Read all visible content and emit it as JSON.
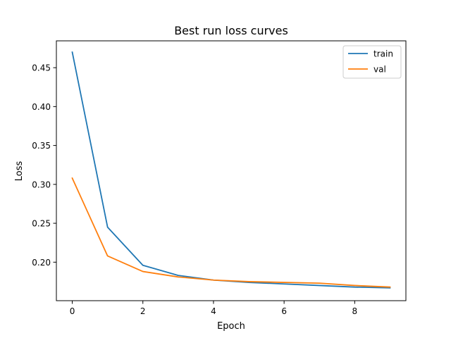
{
  "chart_data": {
    "type": "line",
    "title": "Best run loss curves",
    "xlabel": "Epoch",
    "ylabel": "Loss",
    "x": [
      0,
      1,
      2,
      3,
      4,
      5,
      6,
      7,
      8,
      9
    ],
    "xticks": [
      0,
      2,
      4,
      6,
      8
    ],
    "xtick_labels": [
      "0",
      "2",
      "4",
      "6",
      "8"
    ],
    "yticks": [
      0.2,
      0.25,
      0.3,
      0.35,
      0.4,
      0.45
    ],
    "ytick_labels": [
      "0.20",
      "0.25",
      "0.30",
      "0.35",
      "0.40",
      "0.45"
    ],
    "xlim": [
      -0.45,
      9.45
    ],
    "ylim": [
      0.1505,
      0.4845
    ],
    "grid": false,
    "legend_position": "upper right",
    "series": [
      {
        "name": "train",
        "color": "#1f77b4",
        "values": [
          0.47,
          0.245,
          0.196,
          0.183,
          0.177,
          0.174,
          0.172,
          0.17,
          0.168,
          0.167
        ]
      },
      {
        "name": "val",
        "color": "#ff7f0e",
        "values": [
          0.308,
          0.208,
          0.188,
          0.181,
          0.177,
          0.175,
          0.174,
          0.173,
          0.17,
          0.168
        ]
      }
    ]
  }
}
